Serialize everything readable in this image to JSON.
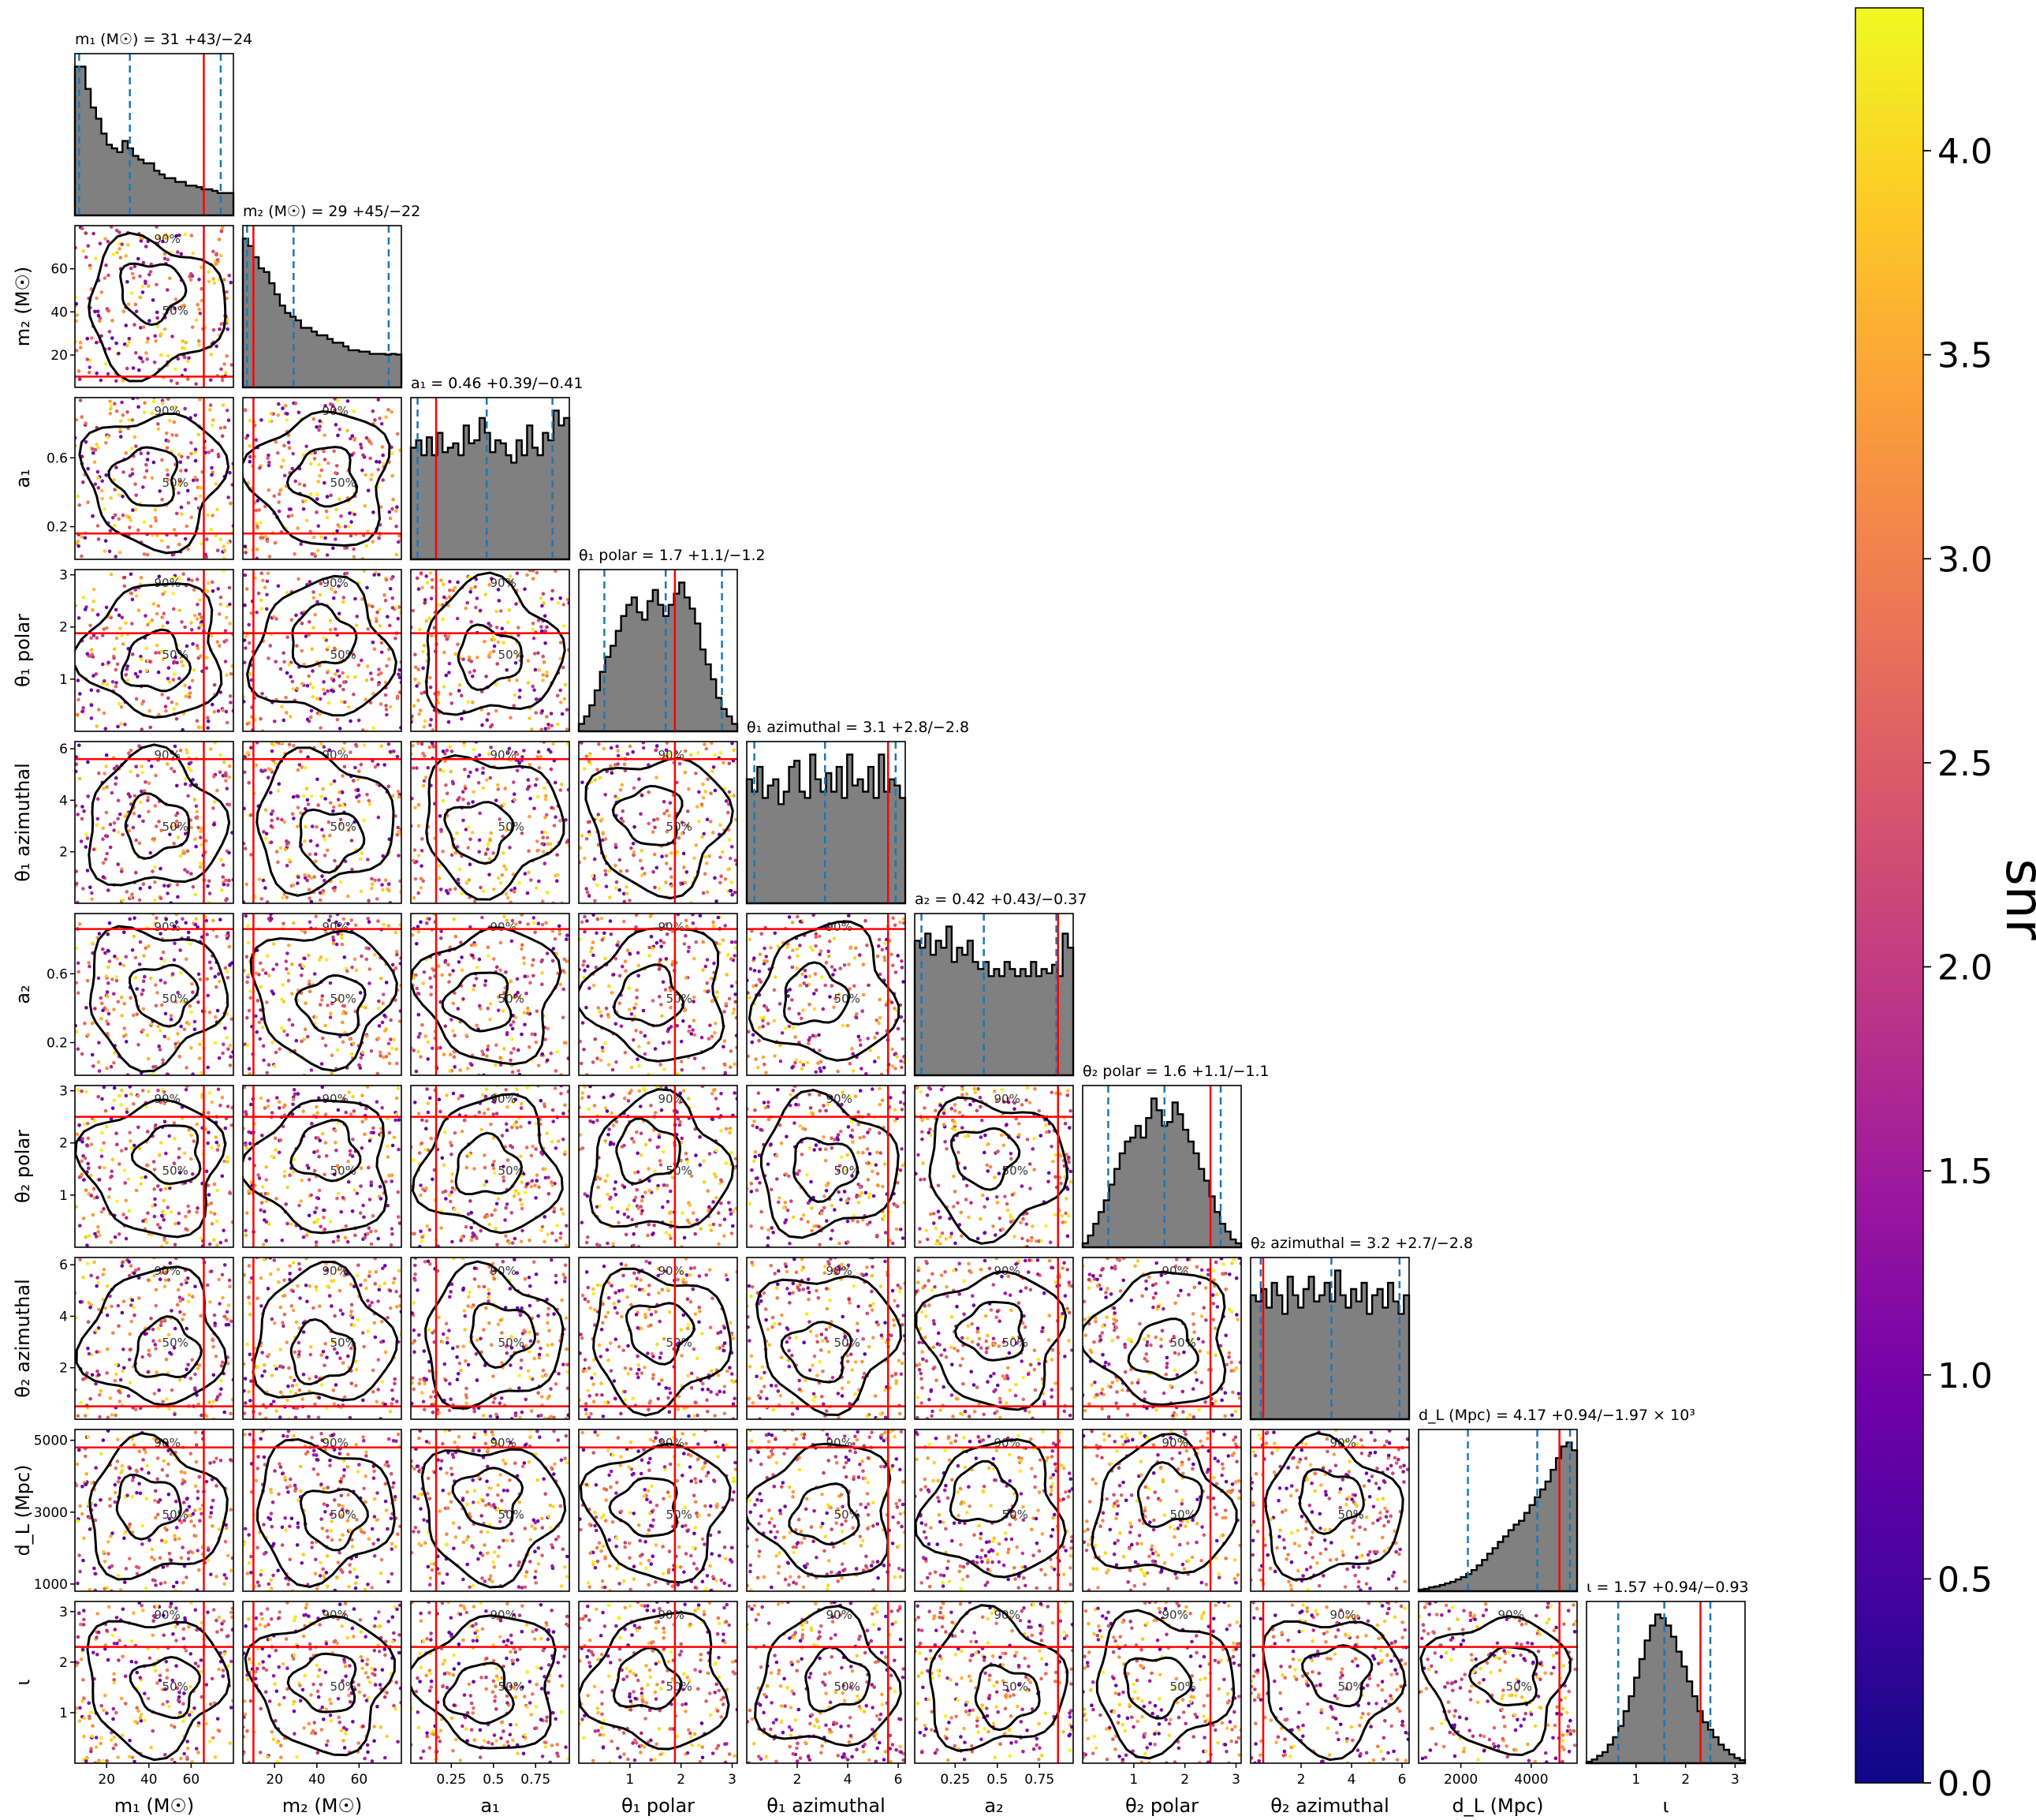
{
  "chart_data": {
    "type": "corner",
    "parameters": [
      {
        "key": "m1",
        "label": "m₁ (M☉)",
        "title": "m₁ (M☉) = 31 +43/−24",
        "range": [
          5,
          80
        ],
        "ticks": [
          20,
          40,
          60
        ],
        "injection": 66,
        "median": 31,
        "lo": 7,
        "hi": 74
      },
      {
        "key": "m2",
        "label": "m₂ (M☉)",
        "title": "m₂ (M☉) = 29 +45/−22",
        "range": [
          5,
          80
        ],
        "ticks": [
          20,
          40,
          60
        ],
        "injection": 10,
        "median": 29,
        "lo": 7,
        "hi": 74
      },
      {
        "key": "a1",
        "label": "a₁",
        "title": "a₁ = 0.46 +0.39/−0.41",
        "range": [
          0.01,
          0.95
        ],
        "ticks": [
          0.2,
          0.6
        ],
        "tick_labels_bottom": [
          0.25,
          0.5,
          0.75
        ],
        "injection": 0.16,
        "median": 0.46,
        "lo": 0.05,
        "hi": 0.85
      },
      {
        "key": "theta1_polar",
        "label": "θ₁ polar",
        "title": "θ₁ polar = 1.7 +1.1/−1.2",
        "range": [
          0.0,
          3.1
        ],
        "ticks": [
          1,
          2,
          3
        ],
        "injection": 1.88,
        "median": 1.7,
        "lo": 0.5,
        "hi": 2.8
      },
      {
        "key": "theta1_azimuthal",
        "label": "θ₁ azimuthal",
        "title": "θ₁ azimuthal = 3.1 +2.8/−2.8",
        "range": [
          0.0,
          6.28
        ],
        "ticks": [
          2,
          4,
          6
        ],
        "injection": 5.6,
        "median": 3.1,
        "lo": 0.3,
        "hi": 5.9
      },
      {
        "key": "a2",
        "label": "a₂",
        "title": "a₂ = 0.42 +0.43/−0.37",
        "range": [
          0.01,
          0.95
        ],
        "ticks": [
          0.2,
          0.6
        ],
        "tick_labels_bottom": [
          0.25,
          0.5,
          0.75
        ],
        "injection": 0.86,
        "median": 0.42,
        "lo": 0.05,
        "hi": 0.85
      },
      {
        "key": "theta2_polar",
        "label": "θ₂ polar",
        "title": "θ₂ polar = 1.6 +1.1/−1.1",
        "range": [
          0.0,
          3.1
        ],
        "ticks": [
          1,
          2,
          3
        ],
        "injection": 2.5,
        "median": 1.6,
        "lo": 0.5,
        "hi": 2.7
      },
      {
        "key": "theta2_azimuthal",
        "label": "θ₂ azimuthal",
        "title": "θ₂ azimuthal = 3.2 +2.7/−2.8",
        "range": [
          0.0,
          6.28
        ],
        "ticks": [
          2,
          4,
          6
        ],
        "injection": 0.5,
        "median": 3.2,
        "lo": 0.4,
        "hi": 5.9
      },
      {
        "key": "dL",
        "label": "d_L (Mpc)",
        "title": "d_L (Mpc) = 4.17 +0.94/−1.97 × 10³",
        "range": [
          800,
          5300
        ],
        "ticks": [
          1000,
          3000,
          5000
        ],
        "tick_labels_bottom": [
          2000,
          4000
        ],
        "injection": 4800,
        "median": 4170,
        "lo": 2200,
        "hi": 5100
      },
      {
        "key": "iota",
        "label": "ι",
        "title": "ι = 1.57 +0.94/−0.93",
        "range": [
          0.0,
          3.2
        ],
        "ticks": [
          1,
          2,
          3
        ],
        "injection": 2.3,
        "median": 1.57,
        "lo": 0.64,
        "hi": 2.5
      }
    ],
    "histograms": {
      "m1": [
        2.0,
        2.0,
        1.7,
        1.45,
        1.3,
        1.1,
        0.95,
        0.9,
        0.85,
        1.0,
        0.9,
        0.8,
        0.75,
        0.7,
        0.7,
        0.6,
        0.55,
        0.5,
        0.5,
        0.45,
        0.45,
        0.4,
        0.4,
        0.38,
        0.35,
        0.35,
        0.33,
        0.3,
        0.3,
        0.3
      ],
      "m2": [
        2.0,
        1.9,
        1.75,
        1.6,
        1.55,
        1.4,
        1.25,
        1.1,
        1.0,
        0.95,
        0.9,
        0.8,
        0.8,
        0.75,
        0.7,
        0.7,
        0.65,
        0.6,
        0.6,
        0.55,
        0.5,
        0.5,
        0.48,
        0.48,
        0.45,
        0.45,
        0.45,
        0.44,
        0.45,
        0.44
      ],
      "a1": [
        0.75,
        0.8,
        0.7,
        0.82,
        0.7,
        0.85,
        0.72,
        0.75,
        0.78,
        0.7,
        0.9,
        0.78,
        0.8,
        0.95,
        0.85,
        0.72,
        0.8,
        0.78,
        0.7,
        0.65,
        0.8,
        0.7,
        0.9,
        0.75,
        0.7,
        0.85,
        0.8,
        1.0,
        0.9,
        0.95
      ],
      "theta1_polar": [
        0.1,
        0.2,
        0.35,
        0.55,
        0.8,
        1.0,
        1.15,
        1.35,
        1.55,
        1.7,
        1.8,
        1.6,
        1.5,
        1.75,
        1.9,
        1.7,
        1.55,
        1.7,
        1.85,
        2.0,
        1.8,
        1.65,
        1.45,
        1.1,
        0.9,
        0.7,
        0.45,
        0.3,
        0.2,
        0.1
      ],
      "theta1_azimuthal": [
        1.0,
        0.9,
        1.1,
        0.85,
        0.95,
        1.0,
        0.8,
        0.9,
        1.1,
        1.15,
        0.9,
        0.85,
        1.2,
        1.0,
        0.9,
        1.05,
        0.9,
        1.1,
        0.85,
        1.2,
        0.95,
        1.0,
        0.9,
        1.1,
        0.85,
        1.2,
        0.9,
        1.0,
        0.95,
        0.85
      ],
      "a2": [
        0.95,
        0.9,
        1.0,
        0.85,
        0.95,
        0.9,
        1.05,
        0.8,
        0.9,
        0.85,
        0.95,
        0.8,
        0.75,
        0.8,
        0.7,
        0.75,
        0.7,
        0.8,
        0.75,
        0.7,
        0.75,
        0.7,
        0.8,
        0.7,
        0.75,
        0.72,
        0.78,
        0.7,
        1.0,
        0.9
      ],
      "theta2_polar": [
        0.05,
        0.15,
        0.3,
        0.45,
        0.6,
        0.8,
        1.0,
        1.2,
        1.35,
        1.4,
        1.55,
        1.4,
        1.65,
        1.9,
        1.75,
        1.55,
        1.6,
        1.85,
        1.7,
        1.5,
        1.35,
        1.2,
        1.0,
        0.85,
        0.65,
        0.45,
        0.3,
        0.2,
        0.1,
        0.05
      ],
      "theta2_azimuthal": [
        1.0,
        0.95,
        1.05,
        0.9,
        1.1,
        1.0,
        0.85,
        1.15,
        1.0,
        0.9,
        1.05,
        1.15,
        0.95,
        1.0,
        1.1,
        0.95,
        1.2,
        1.0,
        0.9,
        1.05,
        0.95,
        1.1,
        0.85,
        1.0,
        1.05,
        0.9,
        1.1,
        0.95,
        0.85,
        1.0
      ],
      "dL": [
        0.02,
        0.03,
        0.05,
        0.06,
        0.08,
        0.1,
        0.12,
        0.15,
        0.18,
        0.22,
        0.27,
        0.33,
        0.4,
        0.48,
        0.55,
        0.63,
        0.7,
        0.78,
        0.85,
        0.9,
        1.0,
        1.1,
        1.2,
        1.3,
        1.4,
        1.55,
        1.7,
        1.85,
        1.9,
        1.8
      ],
      "iota": [
        0.02,
        0.05,
        0.1,
        0.15,
        0.25,
        0.35,
        0.5,
        0.7,
        0.9,
        1.15,
        1.4,
        1.65,
        1.85,
        2.0,
        1.95,
        1.85,
        1.7,
        1.5,
        1.3,
        1.1,
        0.9,
        0.7,
        0.55,
        0.45,
        0.35,
        0.25,
        0.18,
        0.12,
        0.07,
        0.04
      ]
    },
    "contour_levels": [
      "50%",
      "90%"
    ],
    "colorbar": {
      "label": "snr",
      "range": [
        0.0,
        4.35
      ],
      "ticks": [
        "0.0",
        "0.5",
        "1.0",
        "1.5",
        "2.0",
        "2.5",
        "3.0",
        "3.5",
        "4.0"
      ],
      "colormap": [
        "#0d0887",
        "#46039f",
        "#7201a8",
        "#9c179e",
        "#bd3786",
        "#d8576b",
        "#ed7953",
        "#fb9f3a",
        "#fdca26",
        "#f0f921"
      ]
    },
    "colors": {
      "histogram_fill": "#808080",
      "median_lines": "#1f77b4",
      "injection_lines": "#ff0000",
      "contours": "#000000"
    }
  }
}
